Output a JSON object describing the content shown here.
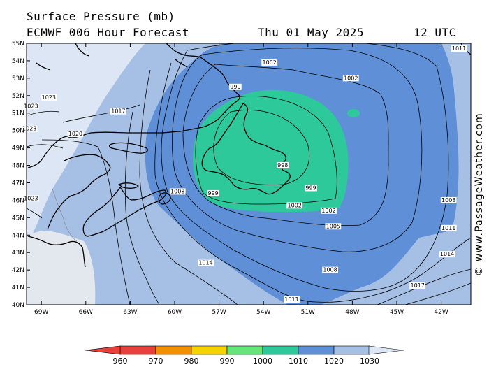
{
  "header": {
    "title": "Surface Pressure (mb)",
    "model": "ECMWF 006 Hour Forecast",
    "date": "Thu 01 May 2025",
    "time": "12 UTC"
  },
  "credit": "© www.PassageWeather.com",
  "map": {
    "lat_labels": [
      "55N",
      "54N",
      "53N",
      "52N",
      "51N",
      "50N",
      "49N",
      "48N",
      "47N",
      "46N",
      "45N",
      "44N",
      "43N",
      "42N",
      "41N",
      "40N"
    ],
    "lon_labels": [
      "69W",
      "66W",
      "63W",
      "60W",
      "57W",
      "54W",
      "51W",
      "48W",
      "45W",
      "42W"
    ],
    "isobar_labels": [
      {
        "text": "1002",
        "lon": -53.6,
        "lat": 53.8
      },
      {
        "text": "1002",
        "lon": -48.1,
        "lat": 52.9
      },
      {
        "text": "999",
        "lon": -55.9,
        "lat": 52.4
      },
      {
        "text": "1017",
        "lon": -63.8,
        "lat": 51.0
      },
      {
        "text": "1023",
        "lon": -68.5,
        "lat": 51.8
      },
      {
        "text": "1023",
        "lon": -69.7,
        "lat": 51.3
      },
      {
        "text": "1023",
        "lon": -69.8,
        "lat": 50.0
      },
      {
        "text": "1020",
        "lon": -66.7,
        "lat": 49.7
      },
      {
        "text": "998",
        "lon": -52.7,
        "lat": 47.9
      },
      {
        "text": "999",
        "lon": -50.8,
        "lat": 46.6
      },
      {
        "text": "999",
        "lon": -57.4,
        "lat": 46.3
      },
      {
        "text": "1008",
        "lon": -59.8,
        "lat": 46.4
      },
      {
        "text": "1023",
        "lon": -69.7,
        "lat": 46.0
      },
      {
        "text": "1002",
        "lon": -51.9,
        "lat": 45.6
      },
      {
        "text": "1002",
        "lon": -49.6,
        "lat": 45.3
      },
      {
        "text": "1005",
        "lon": -49.3,
        "lat": 44.4
      },
      {
        "text": "1014",
        "lon": -57.9,
        "lat": 42.3
      },
      {
        "text": "1008",
        "lon": -49.5,
        "lat": 41.9
      },
      {
        "text": "1011",
        "lon": -52.1,
        "lat": 40.2
      },
      {
        "text": "1017",
        "lon": -43.6,
        "lat": 41.0
      },
      {
        "text": "1014",
        "lon": -41.6,
        "lat": 42.8
      },
      {
        "text": "1011",
        "lon": -41.5,
        "lat": 44.3
      },
      {
        "text": "1008",
        "lon": -41.5,
        "lat": 45.9
      },
      {
        "text": "1011",
        "lon": -40.8,
        "lat": 54.6
      }
    ]
  },
  "legend": {
    "unit": "mb",
    "levels": [
      "960",
      "970",
      "980",
      "990",
      "1000",
      "1010",
      "1020",
      "1030"
    ],
    "colors": [
      "#e8413c",
      "#f29000",
      "#f4d300",
      "#66e57a",
      "#2ec99a",
      "#5f8fd6",
      "#a6bfe4",
      "#dde6f4"
    ]
  },
  "colors": {
    "band_990_1000": "#2ec99a",
    "band_1000_1010": "#5f8fd6",
    "band_1010_1020": "#a6bfe4",
    "band_1020_1030": "#dde6f4",
    "land_edge_bg": "#e2e8ee",
    "coastline": "#000000",
    "isobar": "#000000"
  }
}
